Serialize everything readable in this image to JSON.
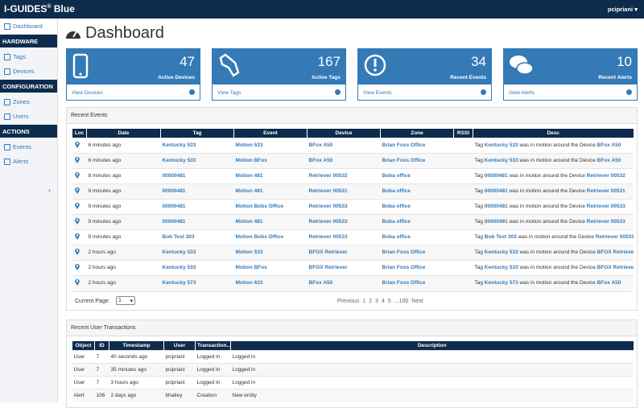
{
  "topbar": {
    "brand": "I-GUIDES",
    "reg": "®",
    "product": "Blue",
    "user": "pcipriani"
  },
  "sidebar": {
    "items": [
      {
        "label": "Dashboard",
        "kind": "item",
        "active": true
      },
      {
        "label": "HARDWARE",
        "kind": "header"
      },
      {
        "label": "Tags",
        "kind": "item"
      },
      {
        "label": "Devices",
        "kind": "item"
      },
      {
        "label": "CONFIGURATION",
        "kind": "header"
      },
      {
        "label": "Zones",
        "kind": "item"
      },
      {
        "label": "Users",
        "kind": "item"
      },
      {
        "label": "ACTIONS",
        "kind": "header"
      },
      {
        "label": "Events",
        "kind": "item"
      },
      {
        "label": "Alerts",
        "kind": "item"
      }
    ]
  },
  "page": {
    "title": "Dashboard"
  },
  "cards": [
    {
      "count": 47,
      "label": "Active Devices",
      "link": "View Devices"
    },
    {
      "count": 167,
      "label": "Active Tags",
      "link": "View Tags"
    },
    {
      "count": 34,
      "label": "Recent Events",
      "link": "View Events"
    },
    {
      "count": 10,
      "label": "Recent Alerts",
      "link": "View Alerts"
    }
  ],
  "events": {
    "title": "Recent Events",
    "columns": [
      "Loc",
      "Date",
      "Tag",
      "Event",
      "Device",
      "Zone",
      "RSSI",
      "Desc"
    ],
    "desc_template": {
      "before": "Tag",
      "middle": "was in motion around the Device"
    },
    "rows": [
      {
        "date": "6 minutes ago",
        "tag": "Kentucky 533",
        "event": "Motion 533",
        "device": "BFox A50",
        "zone": "Brian Foxs Office"
      },
      {
        "date": "6 minutes ago",
        "tag": "Kentucky 533",
        "event": "Motion BFox",
        "device": "BFox A50",
        "zone": "Brian Foxs Office"
      },
      {
        "date": "8 minutes ago",
        "tag": "00000481",
        "event": "Motion 481",
        "device": "Retriever 00532",
        "zone": "Boba office"
      },
      {
        "date": "9 minutes ago",
        "tag": "00000481",
        "event": "Motion 481",
        "device": "Retriever 00531",
        "zone": "Boba office"
      },
      {
        "date": "9 minutes ago",
        "tag": "00000481",
        "event": "Motion Bobs Office",
        "device": "Retriever 00533",
        "zone": "Boba office"
      },
      {
        "date": "9 minutes ago",
        "tag": "00000481",
        "event": "Motion 481",
        "device": "Retriever 00533",
        "zone": "Boba office"
      },
      {
        "date": "9 minutes ago",
        "tag": "Bob Test 303",
        "event": "Motion Bobs Office",
        "device": "Retriever 00533",
        "zone": "Boba office"
      },
      {
        "date": "2 hours ago",
        "tag": "Kentucky 533",
        "event": "Motion 533",
        "device": "BFOX Retriever",
        "zone": "Brian Foxs Office"
      },
      {
        "date": "2 hours ago",
        "tag": "Kentucky 533",
        "event": "Motion BFox",
        "device": "BFOX Retriever",
        "zone": "Brian Foxs Office"
      },
      {
        "date": "2 hours ago",
        "tag": "Kentucky 573",
        "event": "Motion 633",
        "device": "BFox A50",
        "zone": "Brian Foxs Office"
      }
    ],
    "pager": {
      "label": "Current Page:",
      "selected": "1",
      "previous": "Previous",
      "pages": [
        "1",
        "2",
        "3",
        "4",
        "5",
        "...100"
      ],
      "next": "Next"
    }
  },
  "transactions": {
    "title": "Recent User Transactions",
    "columns": [
      "Object",
      "ID",
      "Timestamp",
      "User",
      "Transaction...",
      "Description"
    ],
    "rows": [
      [
        "User",
        7,
        "40 seconds ago",
        "pcipriani",
        "Logged In",
        "Logged in"
      ],
      [
        "User",
        7,
        "35 minutes ago",
        "pcipriani",
        "Logged In",
        "Logged in"
      ],
      [
        "User",
        7,
        "3 hours ago",
        "pcipriani",
        "Logged In",
        "Logged in"
      ],
      [
        "Alert",
        106,
        "2 days ago",
        "bhatley",
        "Creation",
        "New entity"
      ]
    ]
  }
}
